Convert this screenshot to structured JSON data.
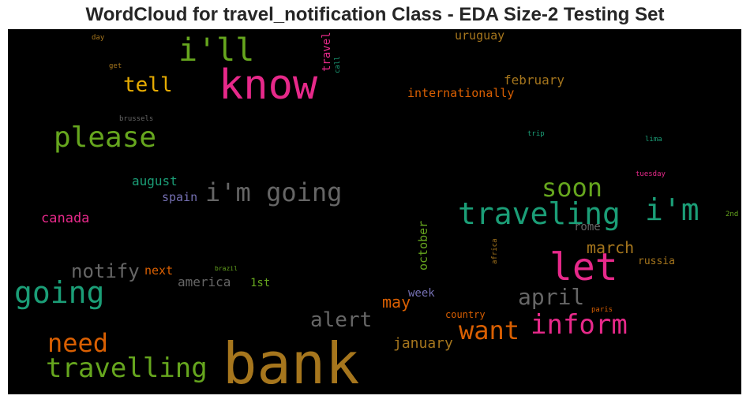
{
  "title": "WordCloud for travel_notification Class - EDA Size-2 Testing Set",
  "words": [
    {
      "text": "bank",
      "color": "#a6761d"
    },
    {
      "text": "know",
      "color": "#e7298a"
    },
    {
      "text": "let",
      "color": "#e7298a"
    },
    {
      "text": "i'll",
      "color": "#66a61e"
    },
    {
      "text": "traveling",
      "color": "#1b9e77"
    },
    {
      "text": "i'm",
      "color": "#1b9e77"
    },
    {
      "text": "please",
      "color": "#66a61e"
    },
    {
      "text": "going",
      "color": "#1b9e77"
    },
    {
      "text": "travelling",
      "color": "#66a61e"
    },
    {
      "text": "inform",
      "color": "#e7298a"
    },
    {
      "text": "i'm going",
      "color": "#666666"
    },
    {
      "text": "soon",
      "color": "#66a61e"
    },
    {
      "text": "need",
      "color": "#d95f02"
    },
    {
      "text": "want",
      "color": "#d95f02"
    },
    {
      "text": "tell",
      "color": "#e6ab02"
    },
    {
      "text": "april",
      "color": "#666666"
    },
    {
      "text": "alert",
      "color": "#666666"
    },
    {
      "text": "notify",
      "color": "#666666"
    },
    {
      "text": "march",
      "color": "#a6761d"
    },
    {
      "text": "may",
      "color": "#d95f02"
    },
    {
      "text": "january",
      "color": "#a6761d"
    },
    {
      "text": "february",
      "color": "#a6761d"
    },
    {
      "text": "internationally",
      "color": "#d95f02"
    },
    {
      "text": "uruguay",
      "color": "#a6761d"
    },
    {
      "text": "canada",
      "color": "#e7298a"
    },
    {
      "text": "august",
      "color": "#1b9e77"
    },
    {
      "text": "america",
      "color": "#666666"
    },
    {
      "text": "spain",
      "color": "#7570b3"
    },
    {
      "text": "next",
      "color": "#d95f02"
    },
    {
      "text": "1st",
      "color": "#66a61e"
    },
    {
      "text": "rome",
      "color": "#666666"
    },
    {
      "text": "russia",
      "color": "#a6761d"
    },
    {
      "text": "week",
      "color": "#7570b3"
    },
    {
      "text": "country",
      "color": "#d95f02"
    },
    {
      "text": "october",
      "color": "#66a61e"
    },
    {
      "text": "travel",
      "color": "#e7298a"
    },
    {
      "text": "call",
      "color": "#1b9e77"
    },
    {
      "text": "africa",
      "color": "#a6761d"
    },
    {
      "text": "day",
      "color": "#a6761d"
    },
    {
      "text": "get",
      "color": "#a6761d"
    },
    {
      "text": "brussels",
      "color": "#666666"
    },
    {
      "text": "trip",
      "color": "#1b9e77"
    },
    {
      "text": "lima",
      "color": "#1b9e77"
    },
    {
      "text": "tuesday",
      "color": "#e7298a"
    },
    {
      "text": "2nd",
      "color": "#66a61e"
    },
    {
      "text": "brazil",
      "color": "#66a61e"
    },
    {
      "text": "paris",
      "color": "#d95f02"
    }
  ]
}
